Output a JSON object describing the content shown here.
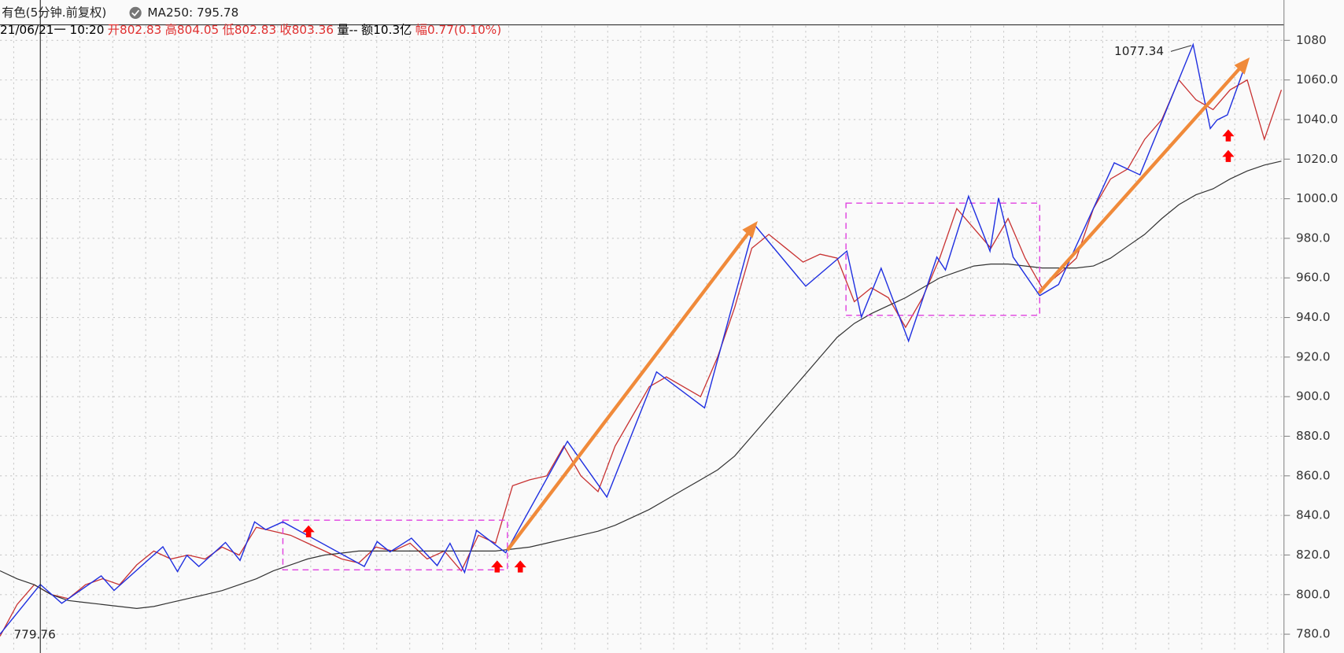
{
  "chart_data": {
    "type": "line",
    "title": "有色(5分钟.前复权)",
    "ma_label": "MA250: 795.78",
    "quote": [
      {
        "text": "21/06/21一 10:20",
        "color": "#000000"
      },
      {
        "text": "开802.83",
        "color": "#e03030"
      },
      {
        "text": "高804.05",
        "color": "#e03030"
      },
      {
        "text": "低802.83",
        "color": "#e03030"
      },
      {
        "text": "收803.36",
        "color": "#e03030"
      },
      {
        "text": "量--",
        "color": "#000000"
      },
      {
        "text": "额10.3亿",
        "color": "#000000"
      },
      {
        "text": "幅0.77(0.10%)",
        "color": "#e03030"
      }
    ],
    "annotations": [
      "1077.34",
      "779.76"
    ],
    "series": [
      {
        "color": "#c83232",
        "values": [
          779,
          795,
          805,
          800,
          798,
          805,
          808,
          805,
          815,
          822,
          818,
          820,
          818,
          824,
          820,
          834,
          832,
          830,
          826,
          822,
          818,
          816,
          824,
          822,
          826,
          818,
          822,
          812,
          830,
          826,
          855,
          858,
          860,
          875,
          860,
          852,
          875,
          890,
          905,
          910,
          905,
          900,
          920,
          945,
          975,
          982,
          975,
          968,
          972,
          970,
          948,
          955,
          950,
          935,
          950,
          970,
          995,
          985,
          975,
          990,
          970,
          955,
          962,
          970,
          995,
          1010,
          1015,
          1030,
          1040,
          1060,
          1050,
          1045,
          1055,
          1060,
          1030,
          1055
        ]
      },
      {
        "color": "#333333",
        "values": [
          812,
          808,
          805,
          800,
          797,
          796,
          795,
          794,
          793,
          794,
          796,
          798,
          800,
          802,
          805,
          808,
          812,
          815,
          818,
          820,
          821,
          822,
          822,
          822,
          822,
          822,
          822,
          822,
          822,
          822,
          823,
          824,
          826,
          828,
          830,
          832,
          835,
          839,
          843,
          848,
          853,
          858,
          863,
          870,
          880,
          890,
          900,
          910,
          920,
          930,
          937,
          942,
          946,
          950,
          955,
          960,
          963,
          966,
          967,
          967,
          966,
          965,
          965,
          965,
          966,
          970,
          976,
          982,
          990,
          997,
          1002,
          1005,
          1010,
          1014,
          1017,
          1019
        ]
      }
    ],
    "ylim": [
      770.5,
      1087.4
    ],
    "yticks": [
      {
        "value": 780,
        "label": "780.0"
      },
      {
        "value": 800,
        "label": "800.0"
      },
      {
        "value": 820,
        "label": "820.0"
      },
      {
        "value": 840,
        "label": "840.0"
      },
      {
        "value": 860,
        "label": "860.0"
      },
      {
        "value": 880,
        "label": "880.0"
      },
      {
        "value": 900,
        "label": "900.0"
      },
      {
        "value": 920,
        "label": "920.0"
      },
      {
        "value": 940,
        "label": "940.0"
      },
      {
        "value": 960,
        "label": "960.0"
      },
      {
        "value": 980,
        "label": "980.0"
      },
      {
        "value": 1000,
        "label": "1000.0"
      },
      {
        "value": 1020,
        "label": "1020.0"
      },
      {
        "value": 1040,
        "label": "1040.0"
      },
      {
        "value": 1060,
        "label": "1060.0"
      },
      1080
    ],
    "grid": true
  }
}
